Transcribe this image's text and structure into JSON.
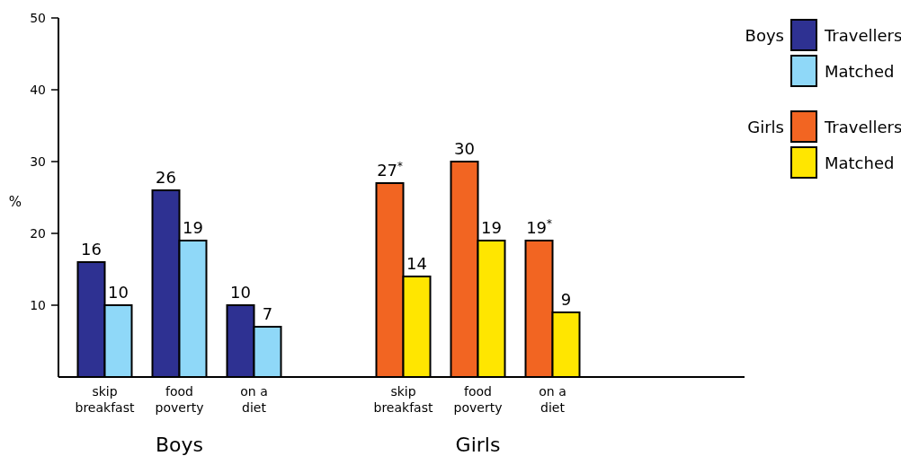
{
  "chart_data": {
    "type": "bar",
    "ylabel": "%",
    "categories": [
      "skip breakfast",
      "food poverty",
      "on a diet",
      null,
      "skip breakfast",
      "food poverty",
      "on a diet",
      null,
      null
    ],
    "series": [
      {
        "name": "Travellers",
        "color": "#2e3192",
        "values": [
          16,
          26,
          10,
          null,
          null,
          null,
          null,
          null,
          null
        ],
        "value_labels": [
          "16",
          "26",
          "10",
          null,
          null,
          null,
          null,
          null,
          null
        ]
      },
      {
        "name": "Matched",
        "color": "#8fd8f8",
        "values": [
          10,
          19,
          7,
          null,
          null,
          null,
          null,
          null,
          null
        ],
        "value_labels": [
          "10",
          "19",
          "7",
          null,
          null,
          null,
          null,
          null,
          null
        ]
      },
      {
        "name": "Travellers",
        "color": "#f26522",
        "values": [
          null,
          null,
          null,
          null,
          27,
          30,
          19,
          null,
          null
        ],
        "value_labels": [
          null,
          null,
          null,
          null,
          "27$^{*}$",
          "30",
          "19$^{*}$",
          null,
          null
        ]
      },
      {
        "name": "Matched",
        "color": "#ffe600",
        "values": [
          null,
          null,
          null,
          null,
          14,
          19,
          9,
          null,
          null
        ],
        "value_labels": [
          null,
          null,
          null,
          null,
          "14",
          "19",
          "9",
          null,
          null
        ]
      }
    ],
    "annotations": [
      "Boys",
      "Girls"
    ],
    "ylim": [
      0,
      50
    ],
    "yticks": [
      10,
      20,
      30,
      40,
      50
    ],
    "grid": false,
    "legend": "top right"
  }
}
